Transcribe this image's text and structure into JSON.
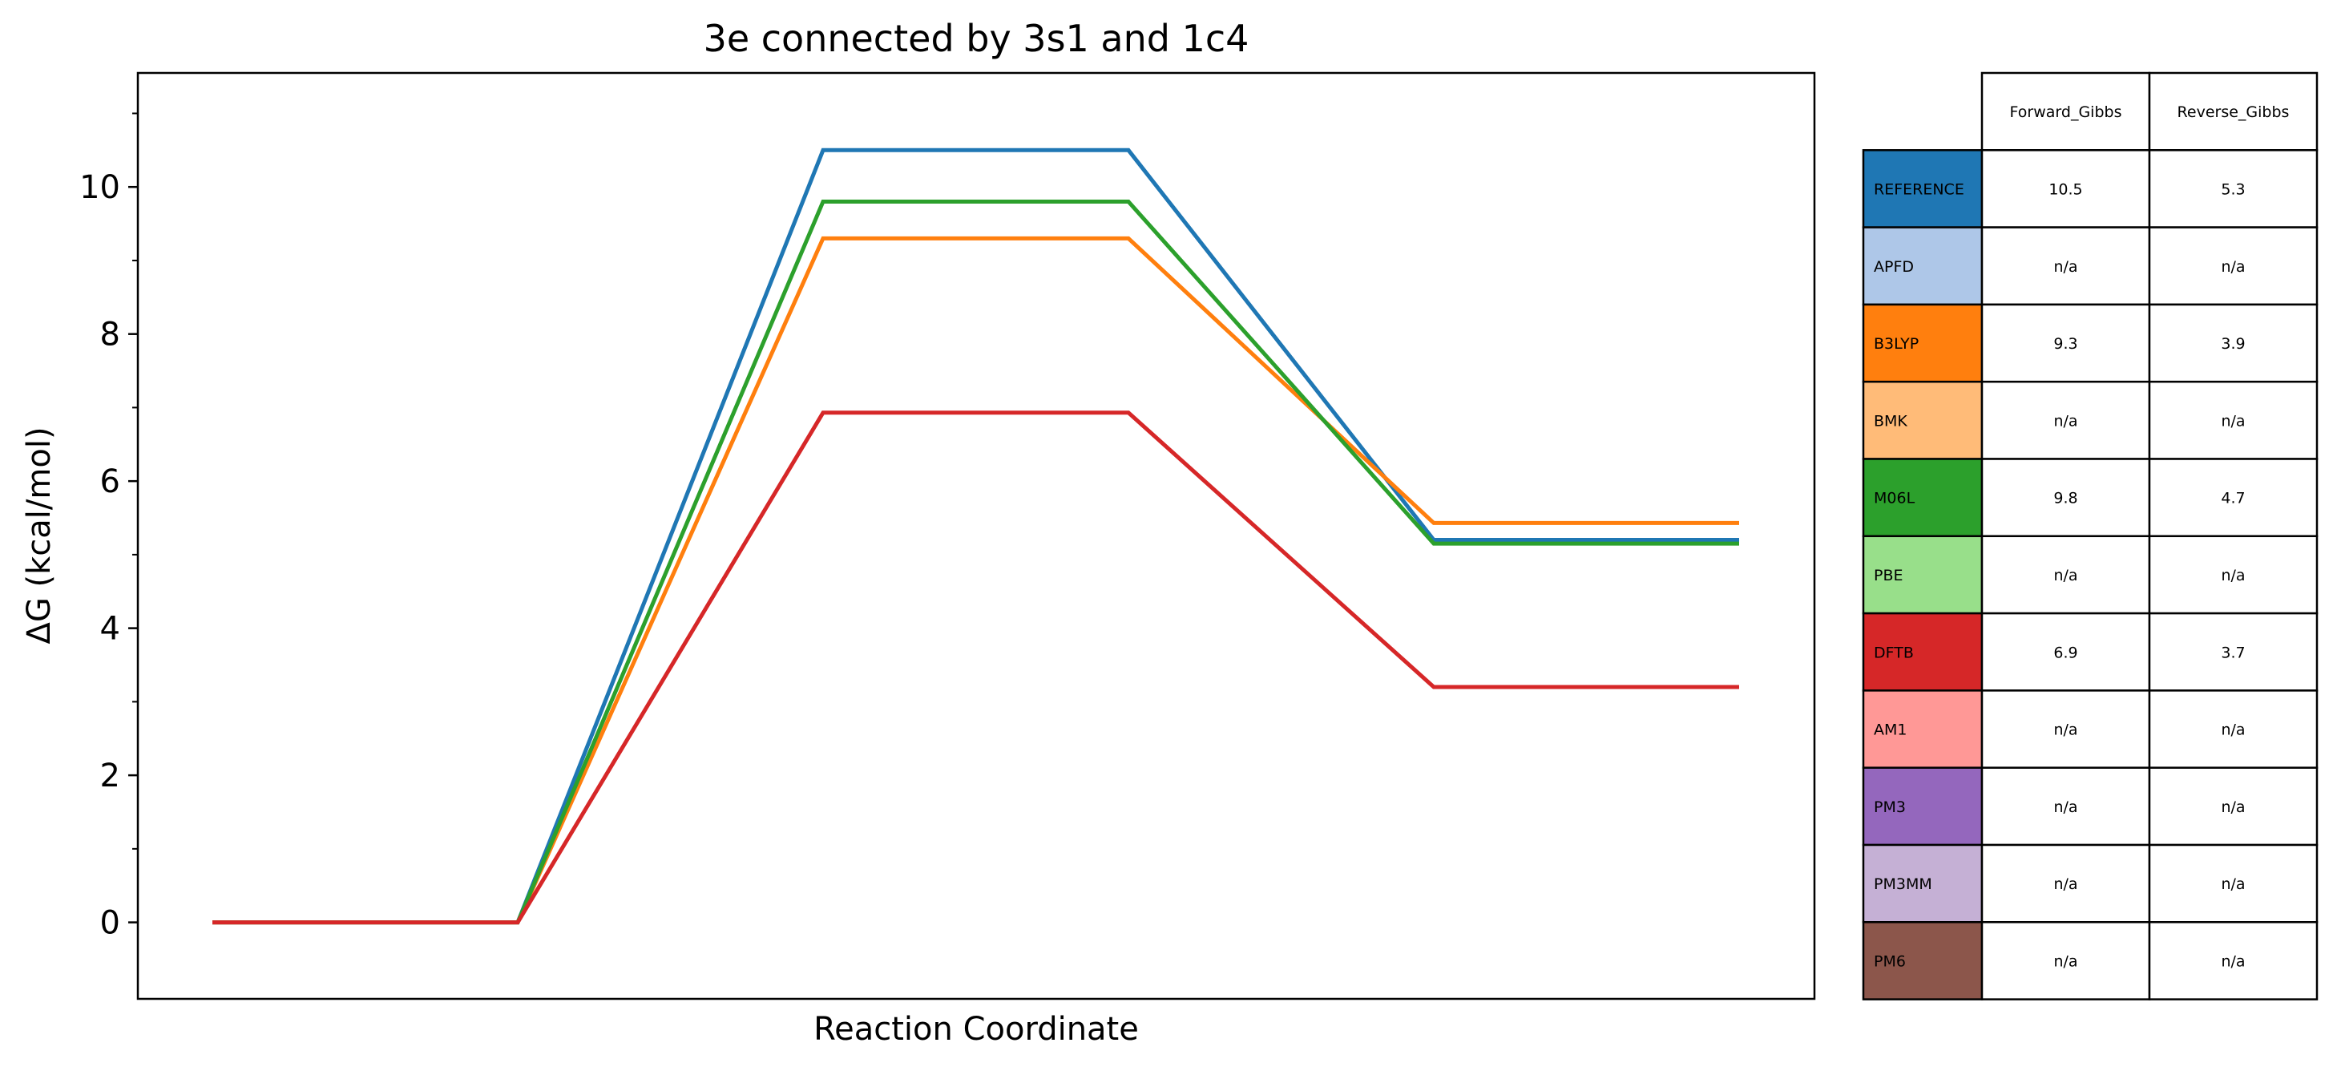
{
  "chart_data": {
    "type": "line",
    "title": "3e connected by 3s1 and 1c4",
    "xlabel": "Reaction Coordinate",
    "ylabel": "ΔG (kcal/mol)",
    "ylim": [
      -1.04,
      11.55
    ],
    "y_ticks": [
      "0",
      "2",
      "4",
      "6",
      "8",
      "10"
    ],
    "y_tick_values": [
      0,
      2,
      4,
      6,
      8,
      10
    ],
    "y_minor_tick_values": [
      1,
      3,
      5,
      7,
      9,
      11
    ],
    "x_points": [
      0,
      1,
      2,
      3,
      4,
      5
    ],
    "grid": false,
    "series": [
      {
        "name": "REFERENCE",
        "color": "#1f77b4",
        "values": [
          0,
          0,
          10.5,
          10.5,
          5.2,
          5.2
        ]
      },
      {
        "name": "B3LYP",
        "color": "#ff7f0e",
        "values": [
          0,
          0,
          9.3,
          9.3,
          5.43,
          5.43
        ]
      },
      {
        "name": "M06L",
        "color": "#2ca02c",
        "values": [
          0,
          0,
          9.8,
          9.8,
          5.15,
          5.15
        ]
      },
      {
        "name": "DFTB",
        "color": "#d62728",
        "values": [
          0,
          0,
          6.93,
          6.93,
          3.2,
          3.2
        ]
      }
    ]
  },
  "table": {
    "headers": [
      "Forward_Gibbs",
      "Reverse_Gibbs"
    ],
    "rows": [
      {
        "label": "REFERENCE",
        "color": "#1f77b4",
        "forward": "10.5",
        "reverse": "5.3"
      },
      {
        "label": "APFD",
        "color": "#aec7e8",
        "forward": "n/a",
        "reverse": "n/a"
      },
      {
        "label": "B3LYP",
        "color": "#ff7f0e",
        "forward": "9.3",
        "reverse": "3.9"
      },
      {
        "label": "BMK",
        "color": "#ffbb78",
        "forward": "n/a",
        "reverse": "n/a"
      },
      {
        "label": "M06L",
        "color": "#2ca02c",
        "forward": "9.8",
        "reverse": "4.7"
      },
      {
        "label": "PBE",
        "color": "#98df8a",
        "forward": "n/a",
        "reverse": "n/a"
      },
      {
        "label": "DFTB",
        "color": "#d62728",
        "forward": "6.9",
        "reverse": "3.7"
      },
      {
        "label": "AM1",
        "color": "#ff9896",
        "forward": "n/a",
        "reverse": "n/a"
      },
      {
        "label": "PM3",
        "color": "#9467bd",
        "forward": "n/a",
        "reverse": "n/a"
      },
      {
        "label": "PM3MM",
        "color": "#c5b0d5",
        "forward": "n/a",
        "reverse": "n/a"
      },
      {
        "label": "PM6",
        "color": "#8c564b",
        "forward": "n/a",
        "reverse": "n/a"
      }
    ]
  }
}
